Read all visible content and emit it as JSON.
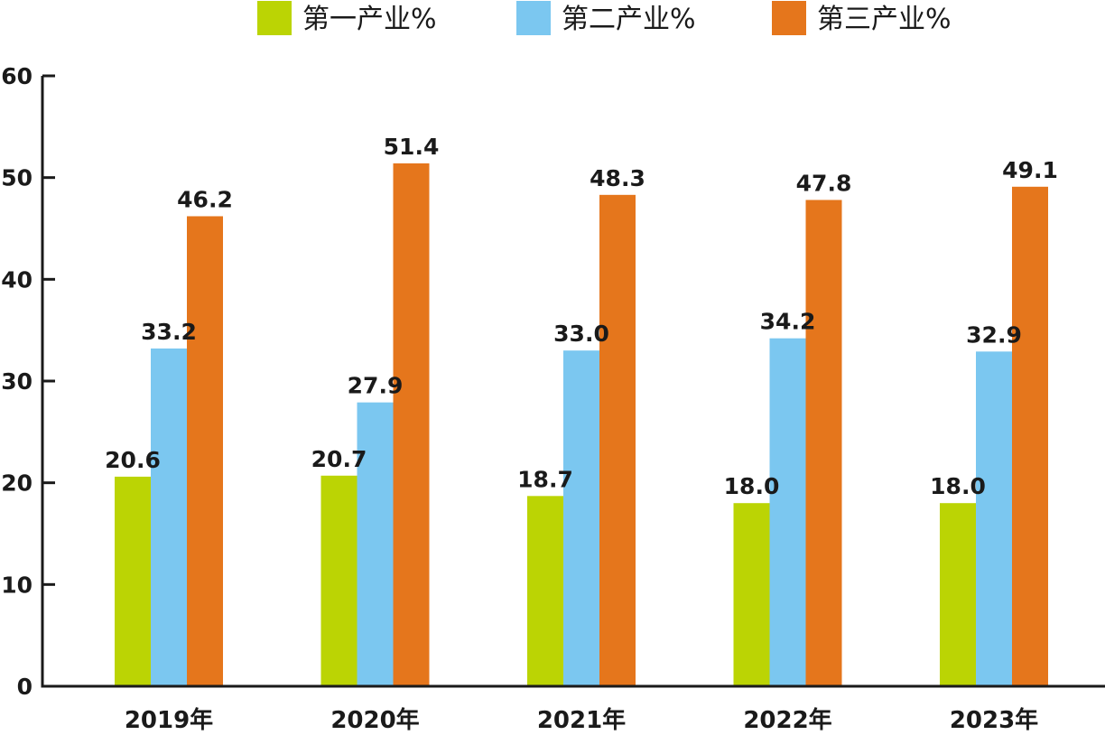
{
  "chart_data": {
    "type": "bar",
    "categories": [
      "2019年",
      "2020年",
      "2021年",
      "2022年",
      "2023年"
    ],
    "series": [
      {
        "name": "第一产业%",
        "values": [
          20.6,
          20.7,
          18.7,
          18.0,
          18.0
        ],
        "labels": [
          "20.6",
          "20.7",
          "18.7",
          "18.0",
          "18.0"
        ],
        "color": "#BBD404"
      },
      {
        "name": "第二产业%",
        "values": [
          33.2,
          27.9,
          33.0,
          34.2,
          32.9
        ],
        "labels": [
          "33.2",
          "27.9",
          "33.0",
          "34.2",
          "32.9"
        ],
        "color": "#7BC7F0"
      },
      {
        "name": "第三产业%",
        "values": [
          46.2,
          51.4,
          48.3,
          47.8,
          49.1
        ],
        "labels": [
          "46.2",
          "51.4",
          "48.3",
          "47.8",
          "49.1"
        ],
        "color": "#E5761C"
      }
    ],
    "yticks": [
      "0",
      "10",
      "20",
      "30",
      "40",
      "50",
      "60"
    ],
    "ylim": [
      0,
      60
    ],
    "title": "",
    "xlabel": "",
    "ylabel": "",
    "grid": false,
    "legend_position": "top",
    "axis_color": "#1a1a1a"
  }
}
